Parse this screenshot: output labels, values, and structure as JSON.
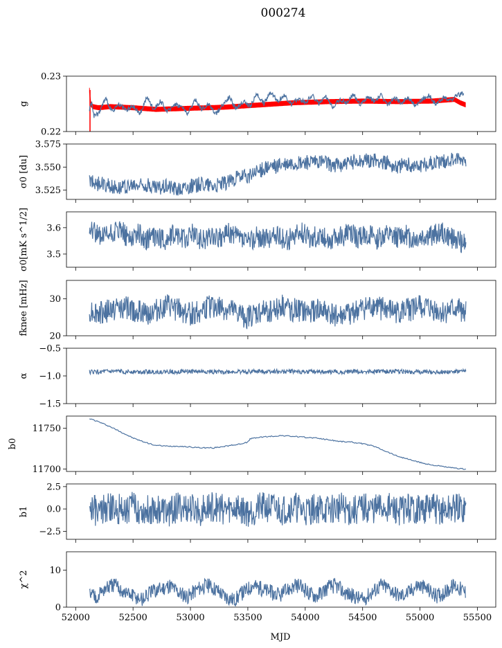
{
  "figure": {
    "title": "000274",
    "xlabel": "MJD"
  },
  "chart_data": [
    {
      "type": "line",
      "ylabel": "g",
      "ylim": [
        0.22,
        0.23
      ],
      "yticks": [
        "0.23",
        "0.22"
      ],
      "ytick_values": [
        0.23,
        0.22
      ],
      "xlim": [
        51920,
        55660
      ],
      "xticks": [
        52000,
        52500,
        53000,
        53500,
        54000,
        54500,
        55000,
        55500
      ],
      "series": [
        {
          "name": "",
          "color": "#ff0000",
          "style": "band",
          "x": [
            52120,
            52130,
            52150,
            52200,
            52300,
            52500,
            52700,
            53000,
            53300,
            53600,
            53900,
            54200,
            54500,
            54800,
            55100,
            55300,
            55350,
            55400
          ],
          "values": [
            0.2275,
            0.225,
            0.2245,
            0.2243,
            0.2245,
            0.2243,
            0.224,
            0.2242,
            0.2244,
            0.2248,
            0.2252,
            0.2254,
            0.2255,
            0.2254,
            0.2255,
            0.2258,
            0.2252,
            0.2248
          ],
          "band_width": 0.0008
        },
        {
          "name": "",
          "color": "#4c72a0",
          "style": "line",
          "x": [
            52120,
            52140,
            52160,
            52200,
            52260,
            52320,
            52380,
            52440,
            52500,
            52560,
            52620,
            52680,
            52740,
            52800,
            52860,
            52920,
            52980,
            53040,
            53100,
            53160,
            53220,
            53280,
            53340,
            53400,
            53460,
            53520,
            53580,
            53640,
            53700,
            53760,
            53820,
            53880,
            53940,
            54000,
            54060,
            54120,
            54180,
            54240,
            54300,
            54360,
            54420,
            54480,
            54540,
            54600,
            54660,
            54720,
            54780,
            54840,
            54900,
            54960,
            55020,
            55080,
            55140,
            55200,
            55260,
            55320,
            55380
          ],
          "values": [
            0.224,
            0.2255,
            0.2228,
            0.2232,
            0.226,
            0.2235,
            0.225,
            0.2238,
            0.2245,
            0.2232,
            0.2262,
            0.224,
            0.2255,
            0.2235,
            0.225,
            0.2245,
            0.2232,
            0.2258,
            0.224,
            0.225,
            0.2232,
            0.2248,
            0.2262,
            0.224,
            0.2255,
            0.2245,
            0.2268,
            0.225,
            0.2272,
            0.2255,
            0.2265,
            0.2248,
            0.226,
            0.2252,
            0.2266,
            0.225,
            0.2262,
            0.2245,
            0.2258,
            0.2252,
            0.2268,
            0.2248,
            0.2262,
            0.2255,
            0.2266,
            0.2248,
            0.226,
            0.2252,
            0.2262,
            0.2245,
            0.2258,
            0.2265,
            0.2248,
            0.2262,
            0.2255,
            0.2265,
            0.227
          ]
        }
      ]
    },
    {
      "type": "line",
      "ylabel": "σ0 [du]",
      "ylim": [
        3.515,
        3.575
      ],
      "yticks": [
        "3.575",
        "3.550",
        "3.525"
      ],
      "ytick_values": [
        3.575,
        3.55,
        3.525
      ],
      "series": [
        {
          "name": "",
          "color": "#4c72a0",
          "x": [
            52120,
            52200,
            52300,
            52400,
            52500,
            52600,
            52700,
            52800,
            52900,
            53000,
            53100,
            53200,
            53300,
            53400,
            53500,
            53600,
            53700,
            53800,
            53900,
            54000,
            54100,
            54200,
            54300,
            54400,
            54500,
            54600,
            54700,
            54800,
            54900,
            55000,
            55100,
            55200,
            55300,
            55400
          ],
          "values": [
            3.535,
            3.532,
            3.53,
            3.528,
            3.529,
            3.531,
            3.527,
            3.53,
            3.526,
            3.529,
            3.532,
            3.53,
            3.533,
            3.538,
            3.54,
            3.546,
            3.55,
            3.552,
            3.554,
            3.555,
            3.556,
            3.553,
            3.552,
            3.555,
            3.558,
            3.557,
            3.555,
            3.551,
            3.553,
            3.552,
            3.554,
            3.556,
            3.558,
            3.557
          ]
        }
      ]
    },
    {
      "type": "line",
      "ylabel": "σ0[mK s^1/2]",
      "ylim": [
        3.45,
        3.66
      ],
      "yticks": [
        "3.6",
        "3.5"
      ],
      "ytick_values": [
        3.6,
        3.5
      ],
      "series": [
        {
          "name": "",
          "color": "#4c72a0",
          "x": [
            52120,
            52160,
            52220,
            52300,
            52380,
            52460,
            52540,
            52620,
            52700,
            52780,
            52860,
            52940,
            53020,
            53100,
            53180,
            53260,
            53340,
            53420,
            53500,
            53580,
            53660,
            53740,
            53820,
            53900,
            53980,
            54060,
            54140,
            54220,
            54300,
            54380,
            54460,
            54540,
            54620,
            54700,
            54780,
            54860,
            54940,
            55020,
            55100,
            55180,
            55260,
            55340,
            55400
          ],
          "values": [
            3.615,
            3.59,
            3.56,
            3.575,
            3.59,
            3.565,
            3.58,
            3.555,
            3.57,
            3.545,
            3.58,
            3.56,
            3.575,
            3.55,
            3.57,
            3.555,
            3.58,
            3.56,
            3.545,
            3.57,
            3.555,
            3.575,
            3.55,
            3.565,
            3.58,
            3.56,
            3.57,
            3.555,
            3.565,
            3.58,
            3.56,
            3.575,
            3.555,
            3.57,
            3.56,
            3.575,
            3.555,
            3.565,
            3.57,
            3.585,
            3.56,
            3.55,
            3.53
          ]
        }
      ]
    },
    {
      "type": "line",
      "ylabel": "fknee [mHz]",
      "ylim": [
        20,
        35
      ],
      "yticks": [
        "30",
        "20"
      ],
      "ytick_values": [
        30,
        20
      ],
      "series": [
        {
          "name": "",
          "color": "#4c72a0",
          "x": [
            52120,
            52200,
            52300,
            52400,
            52500,
            52600,
            52700,
            52800,
            52900,
            53000,
            53100,
            53200,
            53300,
            53400,
            53500,
            53600,
            53700,
            53800,
            53900,
            54000,
            54100,
            54200,
            54300,
            54400,
            54500,
            54600,
            54700,
            54800,
            54900,
            55000,
            55100,
            55200,
            55300,
            55400
          ],
          "values": [
            27,
            26,
            27,
            28,
            27,
            26,
            27,
            28,
            27,
            26,
            27,
            28,
            27,
            26,
            25,
            26,
            27,
            28,
            27,
            26,
            27,
            26,
            25,
            26,
            27,
            28,
            27,
            26,
            27,
            28,
            27,
            26,
            27,
            27
          ]
        }
      ]
    },
    {
      "type": "line",
      "ylabel": "α",
      "ylim": [
        -1.5,
        -0.5
      ],
      "yticks": [
        "−0.5",
        "−1.0",
        "−1.5"
      ],
      "ytick_values": [
        -0.5,
        -1.0,
        -1.5
      ],
      "series": [
        {
          "name": "",
          "color": "#4c72a0",
          "x": [
            52120,
            52400,
            52700,
            53000,
            53300,
            53600,
            53900,
            54200,
            54500,
            54800,
            55100,
            55400
          ],
          "values": [
            -0.93,
            -0.92,
            -0.93,
            -0.92,
            -0.93,
            -0.92,
            -0.92,
            -0.93,
            -0.92,
            -0.92,
            -0.93,
            -0.92
          ]
        }
      ]
    },
    {
      "type": "line",
      "ylabel": "b0",
      "ylim": [
        11697,
        11765
      ],
      "yticks": [
        "11750",
        "11700"
      ],
      "ytick_values": [
        11750,
        11700
      ],
      "series": [
        {
          "name": "",
          "color": "#4c72a0",
          "x": [
            52120,
            52200,
            52300,
            52400,
            52500,
            52600,
            52700,
            52800,
            52900,
            53000,
            53100,
            53200,
            53300,
            53400,
            53500,
            53520,
            53600,
            53700,
            53800,
            53900,
            54000,
            54100,
            54200,
            54300,
            54400,
            54500,
            54600,
            54700,
            54800,
            54900,
            55000,
            55100,
            55200,
            55300,
            55400
          ],
          "values": [
            11762,
            11758,
            11752,
            11745,
            11738,
            11733,
            11729,
            11728,
            11728,
            11727,
            11726,
            11726,
            11728,
            11730,
            11733,
            11737,
            11739,
            11740,
            11741,
            11740,
            11739,
            11738,
            11736,
            11734,
            11733,
            11731,
            11728,
            11722,
            11716,
            11712,
            11708,
            11705,
            11703,
            11701,
            11700
          ]
        }
      ]
    },
    {
      "type": "line",
      "ylabel": "b1",
      "ylim": [
        -3.4,
        2.8
      ],
      "yticks": [
        "2.5",
        "0.0",
        "−2.5"
      ],
      "ytick_values": [
        2.5,
        0.0,
        -2.5
      ],
      "series": [
        {
          "name": "",
          "color": "#4c72a0",
          "x": [
            52120,
            52200,
            52300,
            52400,
            52500,
            52600,
            52700,
            52800,
            52900,
            53000,
            53100,
            53200,
            53300,
            53400,
            53500,
            53600,
            53700,
            53800,
            53900,
            54000,
            54100,
            54200,
            54300,
            54400,
            54500,
            54600,
            54700,
            54800,
            54900,
            55000,
            55100,
            55200,
            55300,
            55400
          ],
          "values": [
            0.1,
            -0.3,
            0.2,
            -0.1,
            0.3,
            -0.2,
            0.1,
            -0.4,
            0.2,
            0.0,
            -0.2,
            0.3,
            -0.1,
            0.2,
            -0.3,
            0.1,
            0.2,
            -0.1,
            0.3,
            -0.2,
            0.1,
            -0.1,
            0.2,
            -0.3,
            0.1,
            0.0,
            0.2,
            -0.2,
            0.1,
            -0.1,
            0.2,
            -0.3,
            0.1,
            0.0
          ]
        }
      ]
    },
    {
      "type": "line",
      "ylabel": "χ^2",
      "ylim": [
        0,
        15
      ],
      "yticks": [
        "10",
        "0"
      ],
      "ytick_values": [
        10,
        0
      ],
      "series": [
        {
          "name": "",
          "color": "#4c72a0",
          "x": [
            52120,
            52180,
            52260,
            52340,
            52420,
            52500,
            52580,
            52660,
            52740,
            52820,
            52900,
            52980,
            53060,
            53140,
            53220,
            53300,
            53380,
            53460,
            53540,
            53620,
            53700,
            53780,
            53860,
            53940,
            54020,
            54100,
            54180,
            54260,
            54340,
            54420,
            54500,
            54580,
            54660,
            54740,
            54820,
            54900,
            54980,
            55060,
            55140,
            55220,
            55300,
            55400
          ],
          "values": [
            4,
            3,
            5,
            6,
            4,
            3,
            2,
            4,
            5,
            6,
            4,
            3,
            5,
            6,
            5,
            3,
            2,
            4,
            6,
            5,
            4,
            3,
            5,
            6,
            4,
            3,
            5,
            6,
            4,
            3,
            2,
            4,
            6,
            5,
            3,
            4,
            6,
            5,
            3,
            4,
            6,
            4
          ]
        }
      ]
    }
  ]
}
